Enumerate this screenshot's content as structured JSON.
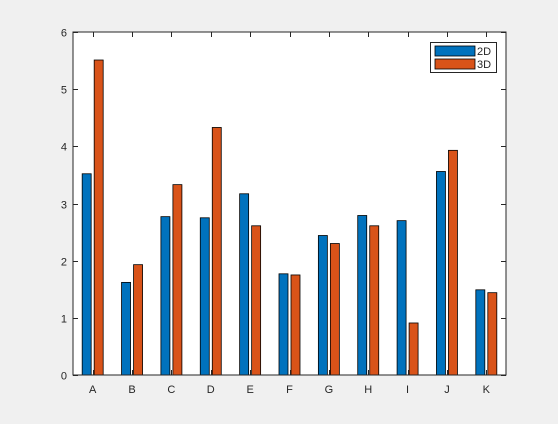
{
  "chart_data": {
    "type": "bar",
    "categories": [
      "A",
      "B",
      "C",
      "D",
      "E",
      "F",
      "G",
      "H",
      "I",
      "J",
      "K"
    ],
    "series": [
      {
        "name": "2D",
        "color": "#0072bd",
        "values": [
          3.52,
          1.62,
          2.77,
          2.75,
          3.17,
          1.77,
          2.44,
          2.79,
          2.7,
          3.56,
          1.49
        ]
      },
      {
        "name": "3D",
        "color": "#d95319",
        "values": [
          5.51,
          1.93,
          3.33,
          4.33,
          2.61,
          1.75,
          2.3,
          2.61,
          0.91,
          3.93,
          1.44
        ]
      }
    ],
    "ylim": [
      0,
      6
    ],
    "yticks": [
      "0",
      "1",
      "2",
      "3",
      "4",
      "5",
      "6"
    ],
    "title": "",
    "xlabel": "",
    "ylabel": "",
    "legend": "top-right",
    "grid": false
  }
}
